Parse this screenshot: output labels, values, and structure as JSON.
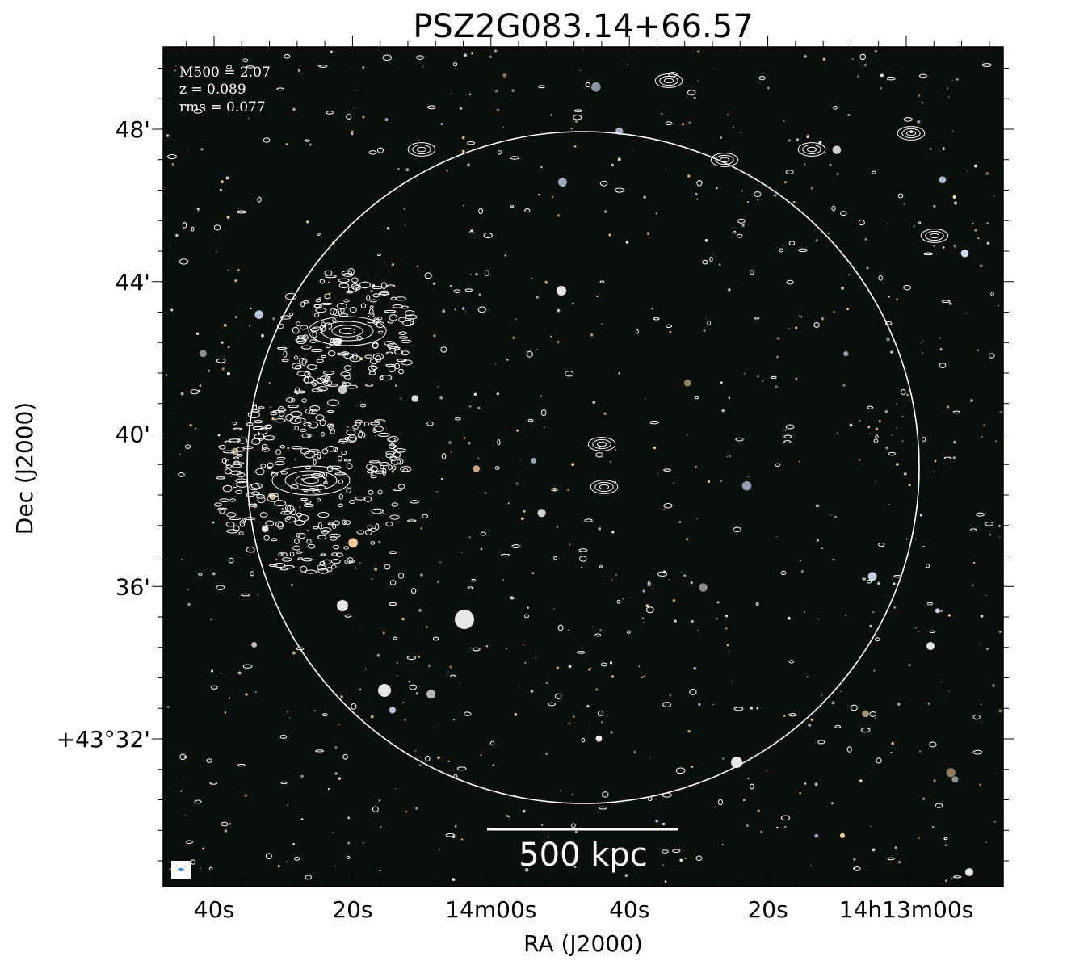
{
  "figure": {
    "title": "PSZ2G083.14+66.57",
    "annotations": [
      "M500 = 2.07",
      "z = 0.089",
      "rms = 0.077"
    ],
    "scale_bar": "500 kpc",
    "x_axis": {
      "label": "RA (J2000)",
      "ticks": [
        "40s",
        "20s",
        "14m00s",
        "40s",
        "20s",
        "14h13m00s"
      ]
    },
    "y_axis": {
      "label": "Dec (J2000)",
      "ticks": [
        "+43°32'",
        "36'",
        "40'",
        "44'",
        "48'"
      ]
    }
  }
}
